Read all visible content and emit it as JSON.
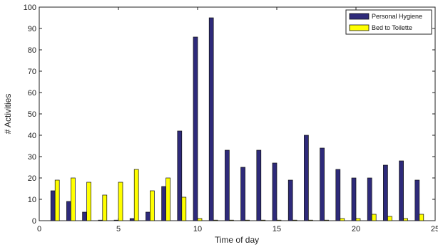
{
  "chart_data": {
    "type": "bar",
    "xlabel": "Time of day",
    "ylabel": "# Activities",
    "xlim": [
      0,
      25
    ],
    "ylim": [
      0,
      100
    ],
    "x_ticks": [
      0,
      5,
      10,
      15,
      20,
      25
    ],
    "y_ticks": [
      0,
      10,
      20,
      30,
      40,
      50,
      60,
      70,
      80,
      90,
      100
    ],
    "legend_position": "top-right",
    "x": [
      1,
      2,
      3,
      4,
      5,
      6,
      7,
      8,
      9,
      10,
      11,
      12,
      13,
      14,
      15,
      16,
      17,
      18,
      19,
      20,
      21,
      22,
      23,
      24
    ],
    "series": [
      {
        "name": "Personal Hygiene",
        "color": "#2e2a7a",
        "values": [
          14,
          9,
          4,
          0,
          0,
          1,
          4,
          16,
          42,
          86,
          95,
          33,
          25,
          33,
          27,
          19,
          40,
          34,
          24,
          20,
          20,
          26,
          28,
          19
        ]
      },
      {
        "name": "Bed to Toilette",
        "color": "#ffff00",
        "values": [
          19,
          20,
          18,
          12,
          18,
          24,
          14,
          20,
          11,
          1,
          0,
          0,
          0,
          0,
          0,
          0,
          0,
          0,
          1,
          1,
          3,
          2,
          1,
          3
        ]
      }
    ]
  }
}
